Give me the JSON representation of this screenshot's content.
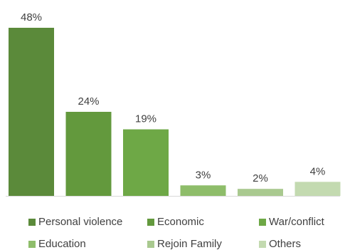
{
  "chart_data": {
    "type": "bar",
    "categories": [
      "Personal violence",
      "Economic",
      "War/conflict",
      "Education",
      "Rejoin Family",
      "Others"
    ],
    "values": [
      48,
      24,
      19,
      3,
      2,
      4
    ],
    "value_labels": [
      "48%",
      "24%",
      "19%",
      "3%",
      "2%",
      "4%"
    ],
    "colors": [
      "#5b8a3a",
      "#63993d",
      "#6ea846",
      "#8ebd6a",
      "#a9c98f",
      "#c3dab0"
    ],
    "ylim": [
      0,
      50
    ],
    "grid": false,
    "legend_position": "bottom",
    "title": "",
    "xlabel": "",
    "ylabel": ""
  }
}
